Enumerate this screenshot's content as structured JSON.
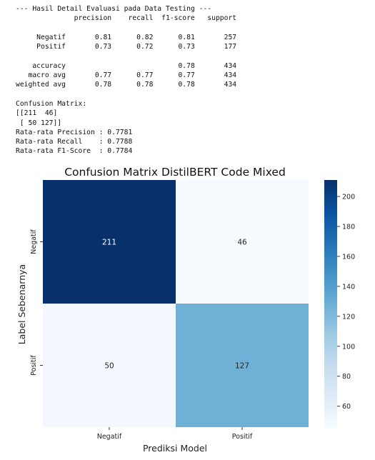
{
  "report": {
    "lines": [
      "--- Hasil Detail Evaluasi pada Data Testing ---",
      "              precision    recall  f1-score   support",
      "",
      "     Negatif       0.81      0.82      0.81       257",
      "     Positif       0.73      0.72      0.73       177",
      "",
      "    accuracy                           0.78       434",
      "   macro avg       0.77      0.77      0.77       434",
      "weighted avg       0.78      0.78      0.78       434",
      "",
      "Confusion Matrix:",
      "[[211  46]",
      " [ 50 127]]",
      "Rata-rata Precision : 0.7781",
      "Rata-rata Recall    : 0.7788",
      "Rata-rata F1-Score  : 0.7784"
    ]
  },
  "chart_data": {
    "type": "heatmap",
    "title": "Confusion Matrix DistilBERT Code Mixed",
    "xlabel": "Prediksi Model",
    "ylabel": "Label Sebenarnya",
    "x_categories": [
      "Negatif",
      "Positif"
    ],
    "y_categories": [
      "Negatif",
      "Positif"
    ],
    "matrix": [
      [
        211,
        46
      ],
      [
        50,
        127
      ]
    ],
    "colormap": "Blues",
    "colorbar": {
      "min": 46,
      "max": 211,
      "ticks": [
        60,
        80,
        100,
        120,
        140,
        160,
        180,
        200
      ]
    }
  }
}
